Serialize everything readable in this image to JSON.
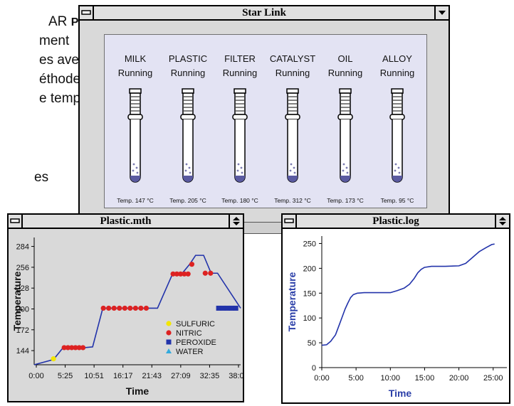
{
  "background_text": {
    "lines": [
      {
        "text": "AR",
        "bold_suffix": "Plus"
      },
      {
        "text": "ment"
      },
      {
        "text": "es avec"
      },
      {
        "text": "éthodes"
      },
      {
        "text": "e temps"
      },
      {
        "text": "es"
      }
    ]
  },
  "starlink": {
    "title": "Star Link",
    "tubes": [
      {
        "name": "MILK",
        "status": "Running",
        "temp": "Temp. 147 °C"
      },
      {
        "name": "PLASTIC",
        "status": "Running",
        "temp": "Temp. 205 °C"
      },
      {
        "name": "FILTER",
        "status": "Running",
        "temp": "Temp. 180 °C"
      },
      {
        "name": "CATALYST",
        "status": "Running",
        "temp": "Temp. 312 °C"
      },
      {
        "name": "OIL",
        "status": "Running",
        "temp": "Temp. 173 °C"
      },
      {
        "name": "ALLOY",
        "status": "Running",
        "temp": "Temp. 95 °C"
      }
    ]
  },
  "method_window": {
    "title": "Plastic.mth",
    "chart_data": {
      "type": "line",
      "xlabel": "Time",
      "ylabel": "Temperature",
      "x_ticks": [
        "0:00",
        "5:25",
        "10:51",
        "16:17",
        "21:43",
        "27:09",
        "32:35",
        "38:01"
      ],
      "y_ticks": [
        144,
        172,
        200,
        228,
        256,
        284
      ],
      "xlim": [
        0,
        38.5
      ],
      "ylim": [
        125,
        296
      ],
      "grid": false,
      "line_color": "#2233aa",
      "x": [
        0,
        3.6,
        5.4,
        9.4,
        10.9,
        12.8,
        15.0,
        21.5,
        23.0,
        25.8,
        27.5,
        29.0,
        30.1,
        30.5,
        31.6,
        33.0,
        34.2,
        38.5
      ],
      "y": [
        125,
        132,
        148,
        148,
        149,
        201,
        201,
        201,
        201,
        247,
        247,
        260,
        272,
        272,
        272,
        248,
        248,
        201
      ],
      "legend_position": "center-right",
      "legend": [
        {
          "label": "SULFURIC",
          "color": "#f2e600",
          "marker": "circle"
        },
        {
          "label": "NITRIC",
          "color": "#dd2222",
          "marker": "circle"
        },
        {
          "label": "PEROXIDE",
          "color": "#2233aa",
          "marker": "square"
        },
        {
          "label": "WATER",
          "color": "#33aadd",
          "marker": "triangle"
        }
      ],
      "markers": [
        {
          "series": "SULFURIC",
          "x": [
            3.6
          ],
          "y": [
            133
          ]
        },
        {
          "series": "NITRIC",
          "x": [
            5.6,
            6.3,
            7.0,
            7.7,
            8.4,
            9.1,
            12.9,
            13.9,
            14.9,
            15.9,
            16.9,
            17.9,
            18.9,
            19.9,
            20.9,
            25.9,
            26.6,
            27.3,
            28.0,
            28.7,
            29.4,
            31.9,
            32.9
          ],
          "y": [
            148,
            148,
            148,
            148,
            148,
            148,
            201,
            201,
            201,
            201,
            201,
            201,
            201,
            201,
            201,
            247,
            247,
            247,
            247,
            247,
            260,
            248,
            248
          ]
        },
        {
          "series": "PEROXIDE",
          "x": [
            34.4,
            35.2,
            36.0,
            36.8,
            37.6
          ],
          "y": [
            201,
            201,
            201,
            201,
            201
          ]
        }
      ]
    }
  },
  "log_window": {
    "title": "Plastic.log",
    "chart_data": {
      "type": "line",
      "xlabel": "Time",
      "ylabel": "Temperature",
      "x_ticks": [
        "0:00",
        "5:00",
        "10:00",
        "15:00",
        "20:00",
        "25:00"
      ],
      "y_ticks": [
        0,
        50,
        100,
        150,
        200,
        250
      ],
      "xlim": [
        0,
        27
      ],
      "ylim": [
        0,
        265
      ],
      "grid": false,
      "line_color": "#2233aa",
      "x": [
        0,
        0.7,
        1.3,
        2.0,
        2.6,
        3.0,
        3.4,
        3.8,
        4.2,
        4.6,
        5.2,
        6.2,
        8.0,
        10.0,
        11.0,
        12.0,
        12.8,
        13.5,
        14.0,
        14.5,
        15.0,
        16.0,
        18.0,
        20.0,
        21.0,
        22.0,
        23.0,
        24.0,
        24.8,
        25.2
      ],
      "y": [
        45,
        46,
        53,
        66,
        88,
        103,
        118,
        130,
        141,
        147,
        150,
        151,
        151,
        151,
        155,
        160,
        168,
        180,
        191,
        198,
        202,
        204,
        204,
        205,
        210,
        222,
        234,
        242,
        248,
        249
      ]
    }
  }
}
